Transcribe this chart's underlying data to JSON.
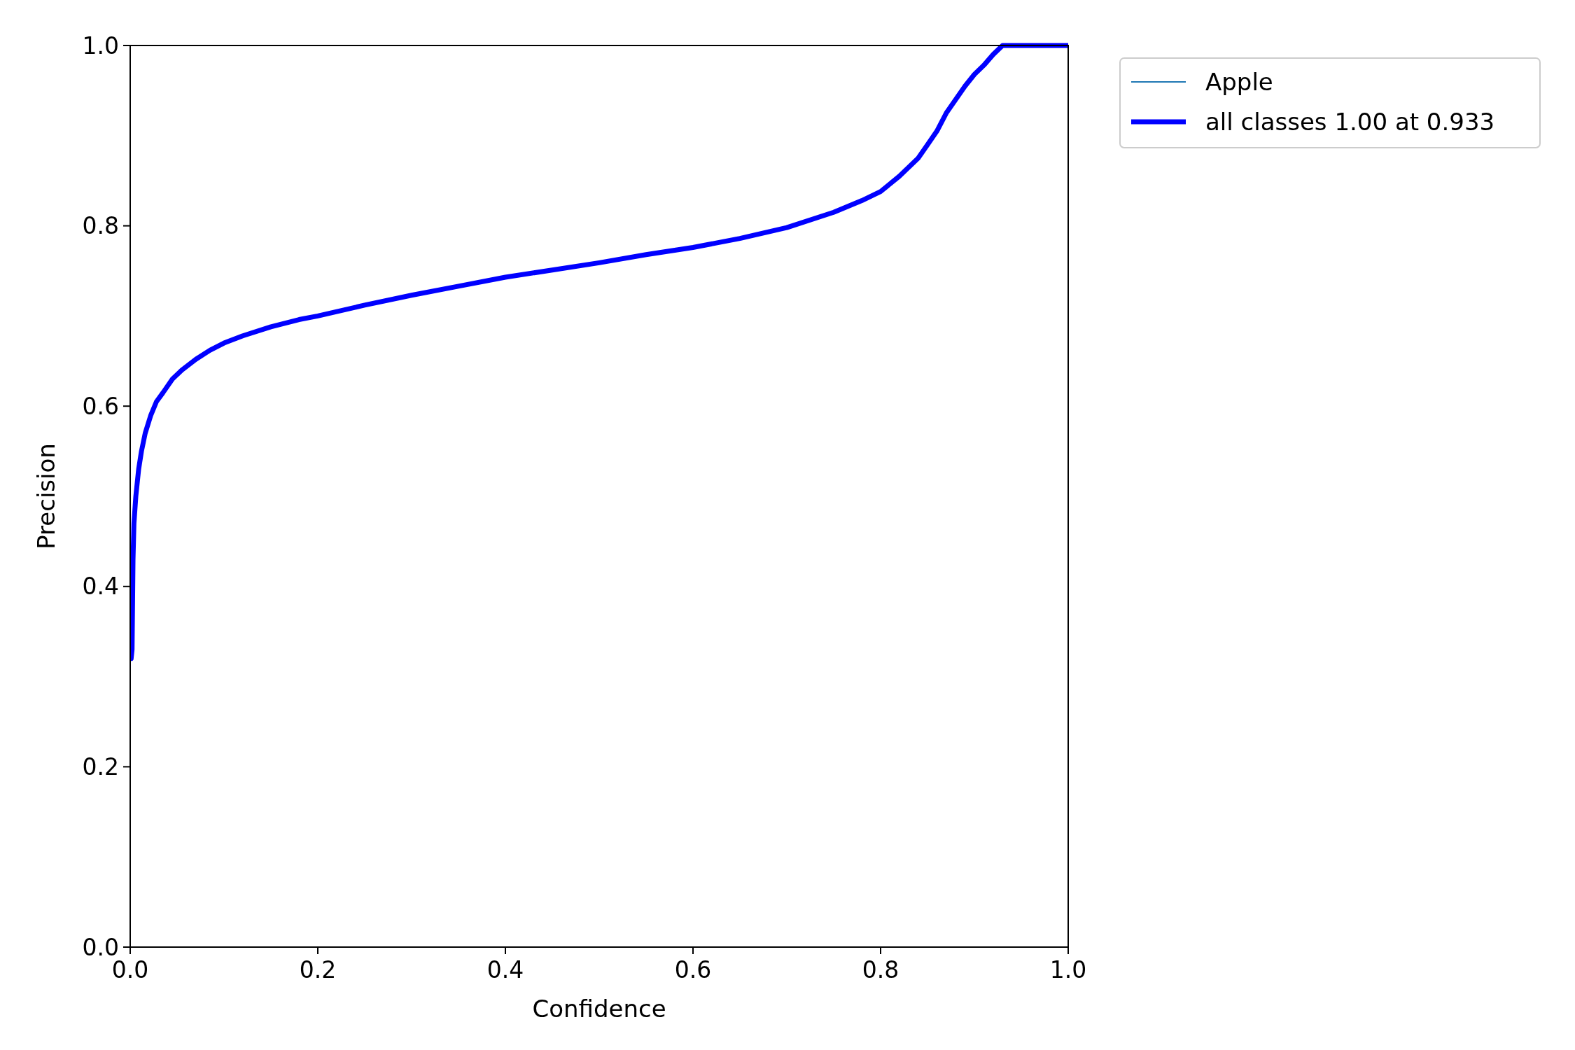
{
  "chart_data": {
    "type": "line",
    "xlabel": "Confidence",
    "ylabel": "Precision",
    "x": [
      0.001,
      0.002,
      0.003,
      0.004,
      0.006,
      0.009,
      0.012,
      0.016,
      0.022,
      0.028,
      0.035,
      0.045,
      0.055,
      0.07,
      0.085,
      0.1,
      0.12,
      0.15,
      0.18,
      0.2,
      0.25,
      0.3,
      0.35,
      0.4,
      0.45,
      0.5,
      0.55,
      0.6,
      0.65,
      0.7,
      0.75,
      0.78,
      0.8,
      0.82,
      0.84,
      0.85,
      0.86,
      0.87,
      0.88,
      0.89,
      0.9,
      0.91,
      0.92,
      0.93,
      0.95,
      1.0
    ],
    "series": [
      {
        "name": "Apple",
        "color": "#1f77b4",
        "values": [
          null,
          null,
          null,
          null,
          null,
          null,
          null,
          null,
          null,
          null,
          null,
          null,
          null,
          null,
          null,
          null,
          null,
          null,
          null,
          null,
          null,
          null,
          null,
          null,
          null,
          null,
          null,
          null,
          null,
          null,
          null,
          null,
          null,
          null,
          null,
          null,
          null,
          null,
          null,
          null,
          null,
          null,
          null,
          null,
          null,
          null
        ]
      },
      {
        "name": "all classes 1.00 at 0.933",
        "color": "#0000ff",
        "values": [
          0.32,
          0.33,
          0.43,
          0.47,
          0.5,
          0.53,
          0.55,
          0.57,
          0.59,
          0.605,
          0.615,
          0.63,
          0.64,
          0.652,
          0.662,
          0.67,
          0.678,
          0.688,
          0.696,
          0.7,
          0.712,
          0.723,
          0.733,
          0.743,
          0.751,
          0.759,
          0.768,
          0.776,
          0.786,
          0.798,
          0.815,
          0.828,
          0.838,
          0.855,
          0.875,
          0.89,
          0.905,
          0.925,
          0.94,
          0.955,
          0.968,
          0.978,
          0.99,
          1.0,
          1.0,
          1.0
        ]
      }
    ],
    "xlim": [
      0,
      1
    ],
    "ylim": [
      0,
      1
    ],
    "xticks": [
      {
        "value": 0,
        "label": "0.0"
      },
      0.2,
      0.4,
      0.6,
      0.8,
      {
        "value": 1,
        "label": "1.0"
      }
    ],
    "yticks": [
      {
        "value": 0,
        "label": "0.0"
      },
      0.2,
      0.4,
      0.6,
      0.8,
      {
        "value": 1,
        "label": "1.0"
      }
    ],
    "grid": false,
    "legend": "top right"
  }
}
